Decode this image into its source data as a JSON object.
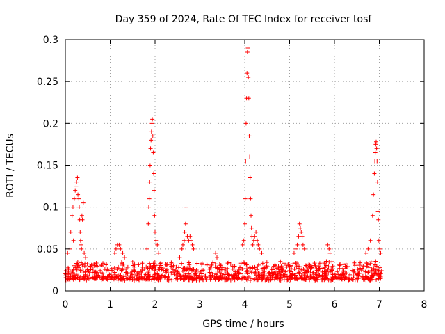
{
  "chart_data": {
    "type": "scatter",
    "title": "Day 359 of 2024, Rate Of TEC Index for receiver tosf",
    "xlabel": "GPS time / hours",
    "ylabel": "ROTI / TECUs",
    "xlim": [
      0,
      8
    ],
    "ylim": [
      0,
      0.3
    ],
    "x_ticks": [
      "0",
      "1",
      "2",
      "3",
      "4",
      "5",
      "6",
      "7",
      "8"
    ],
    "y_ticks": [
      "0",
      "0.05",
      "0.1",
      "0.15",
      "0.2",
      "0.25",
      "0.3"
    ],
    "grid": true,
    "marker": "+",
    "color": "#ff0000",
    "series": [
      {
        "name": "ROTI",
        "baseline": {
          "x_range": [
            0.0,
            7.05
          ],
          "y_range": [
            0.005,
            0.04
          ]
        },
        "points": [
          [
            0.05,
            0.045
          ],
          [
            0.1,
            0.05
          ],
          [
            0.12,
            0.07
          ],
          [
            0.15,
            0.09
          ],
          [
            0.17,
            0.1
          ],
          [
            0.18,
            0.06
          ],
          [
            0.2,
            0.11
          ],
          [
            0.22,
            0.12
          ],
          [
            0.24,
            0.125
          ],
          [
            0.25,
            0.13
          ],
          [
            0.27,
            0.135
          ],
          [
            0.28,
            0.115
          ],
          [
            0.3,
            0.11
          ],
          [
            0.31,
            0.1
          ],
          [
            0.32,
            0.085
          ],
          [
            0.33,
            0.07
          ],
          [
            0.34,
            0.06
          ],
          [
            0.35,
            0.055
          ],
          [
            0.36,
            0.05
          ],
          [
            0.37,
            0.09
          ],
          [
            0.38,
            0.085
          ],
          [
            0.4,
            0.105
          ],
          [
            0.42,
            0.045
          ],
          [
            0.45,
            0.04
          ],
          [
            1.1,
            0.045
          ],
          [
            1.13,
            0.05
          ],
          [
            1.16,
            0.055
          ],
          [
            1.2,
            0.055
          ],
          [
            1.23,
            0.05
          ],
          [
            1.28,
            0.045
          ],
          [
            1.32,
            0.04
          ],
          [
            1.82,
            0.05
          ],
          [
            1.85,
            0.08
          ],
          [
            1.86,
            0.1
          ],
          [
            1.87,
            0.11
          ],
          [
            1.88,
            0.13
          ],
          [
            1.89,
            0.15
          ],
          [
            1.9,
            0.17
          ],
          [
            1.91,
            0.18
          ],
          [
            1.92,
            0.19
          ],
          [
            1.93,
            0.2
          ],
          [
            1.94,
            0.205
          ],
          [
            1.95,
            0.185
          ],
          [
            1.96,
            0.165
          ],
          [
            1.97,
            0.14
          ],
          [
            1.98,
            0.12
          ],
          [
            1.99,
            0.09
          ],
          [
            2.0,
            0.07
          ],
          [
            2.02,
            0.06
          ],
          [
            2.05,
            0.055
          ],
          [
            2.08,
            0.045
          ],
          [
            2.55,
            0.04
          ],
          [
            2.6,
            0.05
          ],
          [
            2.62,
            0.055
          ],
          [
            2.65,
            0.06
          ],
          [
            2.66,
            0.07
          ],
          [
            2.68,
            0.08
          ],
          [
            2.69,
            0.1
          ],
          [
            2.72,
            0.065
          ],
          [
            2.75,
            0.06
          ],
          [
            2.78,
            0.065
          ],
          [
            2.8,
            0.06
          ],
          [
            2.83,
            0.055
          ],
          [
            2.86,
            0.05
          ],
          [
            3.35,
            0.045
          ],
          [
            3.38,
            0.04
          ],
          [
            3.95,
            0.055
          ],
          [
            3.98,
            0.06
          ],
          [
            4.0,
            0.08
          ],
          [
            4.01,
            0.11
          ],
          [
            4.02,
            0.155
          ],
          [
            4.03,
            0.2
          ],
          [
            4.04,
            0.23
          ],
          [
            4.05,
            0.26
          ],
          [
            4.06,
            0.285
          ],
          [
            4.07,
            0.29
          ],
          [
            4.08,
            0.255
          ],
          [
            4.09,
            0.23
          ],
          [
            4.1,
            0.185
          ],
          [
            4.11,
            0.16
          ],
          [
            4.12,
            0.135
          ],
          [
            4.13,
            0.11
          ],
          [
            4.14,
            0.09
          ],
          [
            4.15,
            0.075
          ],
          [
            4.16,
            0.065
          ],
          [
            4.18,
            0.055
          ],
          [
            4.2,
            0.06
          ],
          [
            4.22,
            0.065
          ],
          [
            4.25,
            0.07
          ],
          [
            4.28,
            0.06
          ],
          [
            4.3,
            0.055
          ],
          [
            4.33,
            0.05
          ],
          [
            4.38,
            0.045
          ],
          [
            5.1,
            0.045
          ],
          [
            5.14,
            0.05
          ],
          [
            5.17,
            0.055
          ],
          [
            5.2,
            0.065
          ],
          [
            5.22,
            0.08
          ],
          [
            5.24,
            0.075
          ],
          [
            5.26,
            0.07
          ],
          [
            5.28,
            0.065
          ],
          [
            5.3,
            0.055
          ],
          [
            5.33,
            0.05
          ],
          [
            5.85,
            0.055
          ],
          [
            5.88,
            0.05
          ],
          [
            5.9,
            0.045
          ],
          [
            6.7,
            0.045
          ],
          [
            6.75,
            0.05
          ],
          [
            6.8,
            0.06
          ],
          [
            6.85,
            0.09
          ],
          [
            6.87,
            0.115
          ],
          [
            6.89,
            0.14
          ],
          [
            6.9,
            0.155
          ],
          [
            6.91,
            0.165
          ],
          [
            6.92,
            0.175
          ],
          [
            6.93,
            0.178
          ],
          [
            6.94,
            0.17
          ],
          [
            6.95,
            0.155
          ],
          [
            6.96,
            0.13
          ],
          [
            6.97,
            0.095
          ],
          [
            6.98,
            0.085
          ],
          [
            6.99,
            0.06
          ],
          [
            7.01,
            0.05
          ],
          [
            7.03,
            0.045
          ]
        ]
      }
    ]
  }
}
